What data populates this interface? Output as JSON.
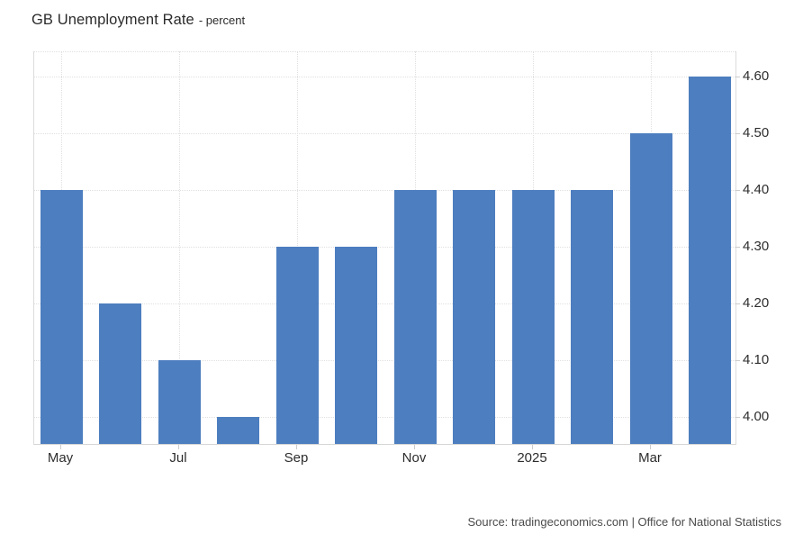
{
  "title": {
    "main": "GB Unemployment Rate",
    "subtitle": "- percent"
  },
  "source": "Source: tradingeconomics.com | Office for National Statistics",
  "colors": {
    "bar": "#4d7ebf",
    "gridline": "#e0e0e0",
    "plot_border": "#dcdcdc",
    "tick": "#cccccc",
    "axis_text": "#2d2d2d",
    "title_text": "#2b2b2b",
    "source_text": "#4a4a4a",
    "background": "#ffffff"
  },
  "chart_data": {
    "type": "bar",
    "title": "GB Unemployment Rate",
    "subtitle": "- percent",
    "ylabel": "percent",
    "values": [
      4.4,
      4.2,
      4.1,
      4.0,
      4.3,
      4.3,
      4.4,
      4.4,
      4.4,
      4.4,
      4.5,
      4.6
    ],
    "bar_count": 12,
    "x_ticks": [
      {
        "label": "May",
        "bar_index": 0
      },
      {
        "label": "Jul",
        "bar_index": 2
      },
      {
        "label": "Sep",
        "bar_index": 4
      },
      {
        "label": "Nov",
        "bar_index": 6
      },
      {
        "label": "2025",
        "bar_index": 8
      },
      {
        "label": "Mar",
        "bar_index": 10
      }
    ],
    "y_ticks": [
      {
        "label": "4.60",
        "value": 4.6
      },
      {
        "label": "4.50",
        "value": 4.5
      },
      {
        "label": "4.40",
        "value": 4.4
      },
      {
        "label": "4.30",
        "value": 4.3
      },
      {
        "label": "4.20",
        "value": 4.2
      },
      {
        "label": "4.10",
        "value": 4.1
      },
      {
        "label": "4.00",
        "value": 4.0
      }
    ],
    "ylim": [
      3.952,
      4.644
    ],
    "y_axis_side": "right",
    "grid": "dotted",
    "legend": "none"
  }
}
